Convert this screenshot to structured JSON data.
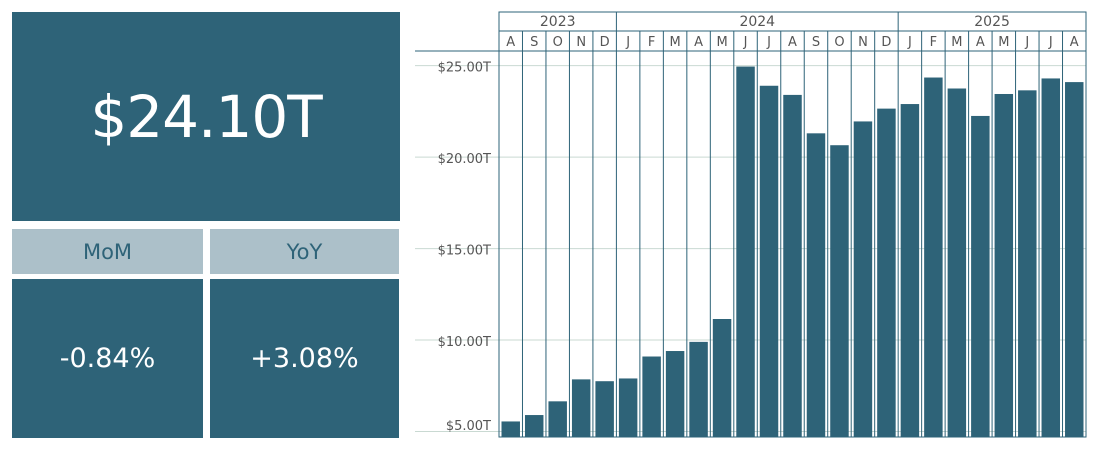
{
  "kpi": {
    "total_value": "$24.10T",
    "mom_label": "MoM",
    "mom_value": "-0.84%",
    "yoy_label": "YoY",
    "yoy_value": "+3.08%"
  },
  "colors": {
    "bar": "#2e6378",
    "header_bg": "#acc0c9",
    "grid": "#c9d9d2",
    "border": "#2e6378",
    "text": "#555555"
  },
  "chart_data": {
    "type": "bar",
    "years": [
      {
        "label": "2023",
        "months": 5
      },
      {
        "label": "2024",
        "months": 12
      },
      {
        "label": "2025",
        "months": 8
      }
    ],
    "categories": [
      "A",
      "S",
      "O",
      "N",
      "D",
      "J",
      "F",
      "M",
      "A",
      "M",
      "J",
      "J",
      "A",
      "S",
      "O",
      "N",
      "D",
      "J",
      "F",
      "M",
      "A",
      "M",
      "J",
      "J",
      "A"
    ],
    "values": [
      5.55,
      5.9,
      6.65,
      7.85,
      7.75,
      7.9,
      9.1,
      9.4,
      9.9,
      11.15,
      24.95,
      23.9,
      23.4,
      21.3,
      20.65,
      21.95,
      22.65,
      22.9,
      24.35,
      23.75,
      22.25,
      23.45,
      23.65,
      24.3,
      24.1
    ],
    "ylim": [
      4.7,
      25.8
    ],
    "yticks": [
      5,
      10,
      15,
      20,
      25
    ],
    "ytick_labels": [
      "$5.00T",
      "$10.00T",
      "$15.00T",
      "$20.00T",
      "$25.00T"
    ],
    "unit": "trillion USD",
    "grid": true
  }
}
